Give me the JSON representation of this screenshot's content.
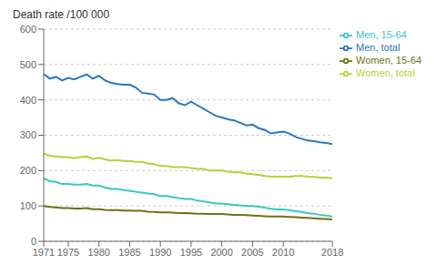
{
  "chart_data": {
    "type": "line",
    "ylabel": "Death rate /100 000",
    "x": [
      1971,
      1972,
      1973,
      1974,
      1975,
      1976,
      1977,
      1978,
      1979,
      1980,
      1981,
      1982,
      1983,
      1984,
      1985,
      1986,
      1987,
      1988,
      1989,
      1990,
      1991,
      1992,
      1993,
      1994,
      1995,
      1996,
      1997,
      1998,
      1999,
      2000,
      2001,
      2002,
      2003,
      2004,
      2005,
      2006,
      2007,
      2008,
      2009,
      2010,
      2011,
      2012,
      2013,
      2014,
      2015,
      2016,
      2017,
      2018
    ],
    "series": [
      {
        "name": "Men, total",
        "color": "#2878c0",
        "values": [
          473,
          460,
          465,
          455,
          462,
          458,
          465,
          472,
          460,
          468,
          455,
          448,
          445,
          443,
          443,
          435,
          420,
          418,
          415,
          400,
          400,
          405,
          390,
          385,
          395,
          385,
          375,
          365,
          355,
          350,
          345,
          342,
          335,
          328,
          330,
          320,
          315,
          305,
          308,
          310,
          305,
          295,
          290,
          285,
          283,
          280,
          278,
          275
        ]
      },
      {
        "name": "Women, total",
        "color": "#b8d038",
        "values": [
          248,
          242,
          240,
          238,
          238,
          235,
          238,
          240,
          233,
          236,
          232,
          228,
          230,
          227,
          227,
          225,
          225,
          220,
          218,
          213,
          213,
          210,
          210,
          210,
          207,
          205,
          205,
          200,
          200,
          200,
          197,
          195,
          195,
          192,
          190,
          188,
          185,
          183,
          183,
          183,
          182,
          185,
          185,
          183,
          182,
          180,
          180,
          178
        ]
      },
      {
        "name": "Men, 15-64",
        "color": "#38c8c0",
        "values": [
          178,
          170,
          168,
          162,
          162,
          160,
          160,
          162,
          158,
          158,
          152,
          148,
          148,
          145,
          143,
          140,
          138,
          135,
          133,
          128,
          128,
          125,
          122,
          120,
          120,
          115,
          113,
          110,
          107,
          107,
          105,
          103,
          102,
          100,
          100,
          98,
          95,
          92,
          90,
          90,
          88,
          85,
          83,
          80,
          78,
          75,
          73,
          70
        ]
      },
      {
        "name": "Women, 15-64",
        "color": "#707010",
        "values": [
          100,
          97,
          96,
          94,
          94,
          93,
          93,
          94,
          91,
          91,
          89,
          88,
          88,
          87,
          87,
          86,
          86,
          84,
          83,
          82,
          82,
          81,
          80,
          80,
          79,
          78,
          78,
          77,
          77,
          77,
          76,
          75,
          75,
          74,
          73,
          72,
          71,
          70,
          70,
          70,
          69,
          68,
          67,
          66,
          65,
          64,
          63,
          62
        ]
      }
    ],
    "xlim": [
      1971,
      2018
    ],
    "xticks": [
      1971,
      1975,
      1980,
      1985,
      1990,
      1995,
      2000,
      2005,
      2010,
      2018
    ],
    "ylim": [
      0,
      600
    ],
    "yticks": [
      0,
      100,
      200,
      300,
      400,
      500,
      600
    ],
    "grid": true,
    "legend": "upper right"
  }
}
